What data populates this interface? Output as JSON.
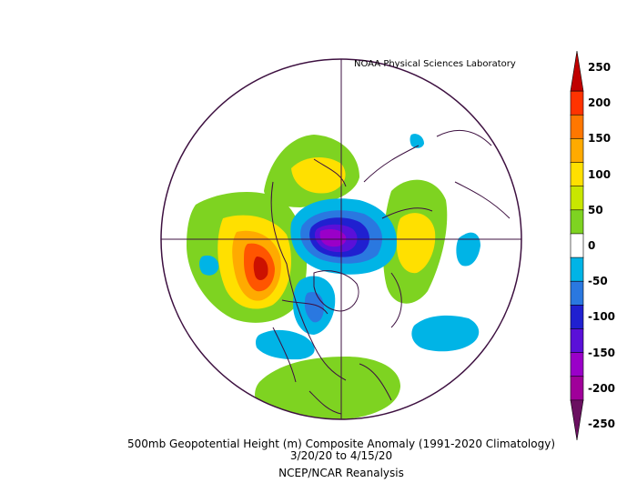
{
  "credit": "NOAA Physical Sciences Laboratory",
  "title": "500mb Geopotential Height (m) Composite Anomaly (1991-2020 Climatology)",
  "date_range": "3/20/20  to 4/15/20",
  "source": "NCEP/NCAR Reanalysis",
  "colorbar": {
    "ticks": [
      "250",
      "200",
      "150",
      "100",
      "50",
      "0",
      "-50",
      "-100",
      "-150",
      "-200",
      "-250"
    ],
    "colors": [
      "#c00000",
      "#ff3300",
      "#ff7700",
      "#ffaa00",
      "#ffe000",
      "#c8e600",
      "#7ed321",
      "#ffffff",
      "#00b4e6",
      "#2a78e0",
      "#2020d0",
      "#5a10d8",
      "#9a00c8",
      "#a0009a",
      "#6a1060"
    ]
  },
  "colors": {
    "border": "#3d1040",
    "strong_positive": "#cc0000",
    "positive": "#ff7700",
    "weak_positive": "#7ed321",
    "negative": "#00b4e6",
    "strong_negative": "#5a10d8"
  }
}
